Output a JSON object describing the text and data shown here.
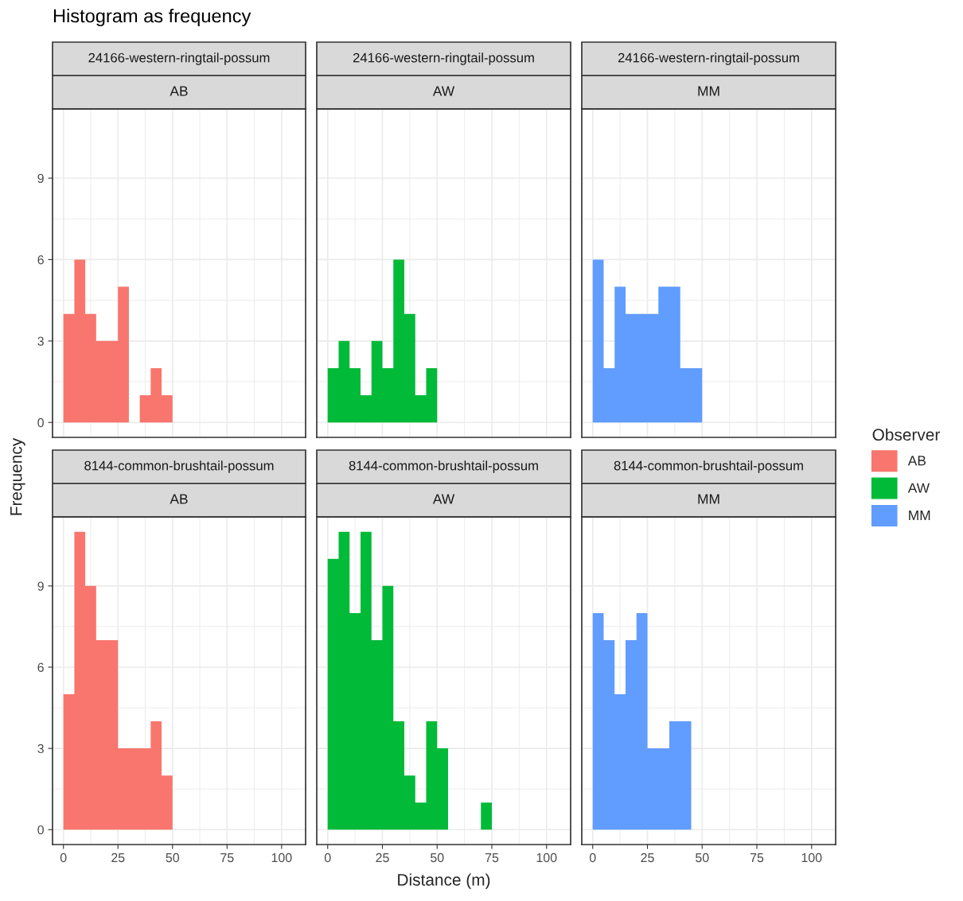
{
  "chart_data": [
    {
      "type": "histogram",
      "title": "24166-western-ringtail-possum",
      "subtitle": "AB",
      "annotations": [
        "Histogram as frequency"
      ],
      "ylabel": "Frequency",
      "bins": [
        0,
        5,
        10,
        15,
        20,
        25,
        30,
        35,
        40,
        45,
        50
      ],
      "series": [
        {
          "name": "AB",
          "color": "#f8766d",
          "values": [
            4,
            6,
            4,
            3,
            3,
            5,
            0,
            1,
            2,
            1
          ]
        }
      ],
      "xlim": [
        -5,
        111
      ],
      "xticks": [
        0,
        25,
        50,
        75,
        100
      ],
      "ylim": [
        -0.55,
        11.55
      ],
      "yticks": [
        0,
        3,
        6,
        9
      ],
      "grid": true,
      "tick_labels": "y"
    },
    {
      "type": "histogram",
      "title": "24166-western-ringtail-possum",
      "subtitle": "AW",
      "bins": [
        0,
        5,
        10,
        15,
        20,
        25,
        30,
        35,
        40,
        45,
        50
      ],
      "series": [
        {
          "name": "AW",
          "color": "#00ba38",
          "values": [
            2,
            3,
            2,
            1,
            3,
            2,
            6,
            4,
            1,
            2
          ]
        }
      ],
      "xlim": [
        -5,
        111
      ],
      "xticks": [
        0,
        25,
        50,
        75,
        100
      ],
      "ylim": [
        -0.55,
        11.55
      ],
      "yticks": [
        0,
        3,
        6,
        9
      ],
      "grid": true,
      "tick_labels": false
    },
    {
      "type": "histogram",
      "title": "24166-western-ringtail-possum",
      "subtitle": "MM",
      "legend": "right",
      "legend_title": "Observer",
      "bins": [
        0,
        5,
        10,
        15,
        20,
        25,
        30,
        35,
        40,
        45,
        50
      ],
      "series": [
        {
          "name": "MM",
          "color": "#619cff",
          "values": [
            6,
            2,
            5,
            4,
            4,
            4,
            5,
            5,
            2,
            2
          ]
        }
      ],
      "xlim": [
        -5,
        111
      ],
      "xticks": [
        0,
        25,
        50,
        75,
        100
      ],
      "ylim": [
        -0.55,
        11.55
      ],
      "yticks": [
        0,
        3,
        6,
        9
      ],
      "grid": true,
      "tick_labels": false
    },
    {
      "type": "histogram",
      "title": "8144-common-brushtail-possum",
      "subtitle": "AB",
      "bins": [
        0,
        5,
        10,
        15,
        20,
        25,
        30,
        35,
        40,
        45,
        50
      ],
      "series": [
        {
          "color": "#f8766d",
          "values": [
            5,
            11,
            9,
            7,
            7,
            3,
            3,
            3,
            4,
            2
          ]
        }
      ],
      "xlim": [
        -5,
        111
      ],
      "xticks": [
        0,
        25,
        50,
        75,
        100
      ],
      "ylim": [
        -0.55,
        11.55
      ],
      "yticks": [
        0,
        3,
        6,
        9
      ],
      "grid": true
    },
    {
      "type": "histogram",
      "title": "8144-common-brushtail-possum",
      "subtitle": "AW",
      "xlabel": "Distance (m)",
      "bins": [
        0,
        5,
        10,
        15,
        20,
        25,
        30,
        35,
        40,
        45,
        50,
        55,
        60,
        65,
        70,
        75
      ],
      "series": [
        {
          "color": "#00ba38",
          "values": [
            10,
            11,
            8,
            11,
            7,
            9,
            4,
            2,
            1,
            4,
            3,
            0,
            0,
            0,
            1
          ]
        }
      ],
      "xlim": [
        -5,
        111
      ],
      "xticks": [
        0,
        25,
        50,
        75,
        100
      ],
      "ylim": [
        -0.55,
        11.55
      ],
      "yticks": [
        0,
        3,
        6,
        9
      ],
      "grid": true,
      "tick_labels": "x"
    },
    {
      "type": "histogram",
      "title": "8144-common-brushtail-possum",
      "subtitle": "MM",
      "bins": [
        0,
        5,
        10,
        15,
        20,
        25,
        30,
        35,
        40,
        45
      ],
      "series": [
        {
          "color": "#619cff",
          "values": [
            8,
            7,
            5,
            7,
            8,
            3,
            3,
            4,
            4
          ]
        }
      ],
      "xlim": [
        -5,
        111
      ],
      "xticks": [
        0,
        25,
        50,
        75,
        100
      ],
      "ylim": [
        -0.55,
        11.55
      ],
      "yticks": [
        0,
        3,
        6,
        9
      ],
      "grid": true,
      "tick_labels": "x"
    }
  ]
}
